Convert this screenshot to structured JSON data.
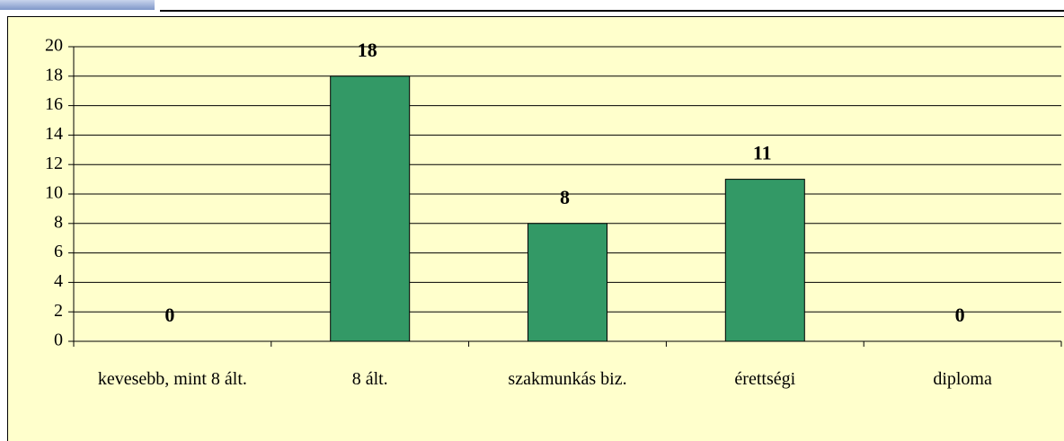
{
  "chart_data": {
    "type": "bar",
    "categories": [
      "kevesebb, mint 8 ált.",
      "8 ált.",
      "szakmunkás biz.",
      "érettségi",
      "diploma"
    ],
    "values": [
      0,
      18,
      8,
      11,
      0
    ],
    "color": "#339966",
    "ylim": [
      0,
      20
    ],
    "yticks": [
      0,
      2,
      4,
      6,
      8,
      10,
      12,
      14,
      16,
      18,
      20
    ],
    "grid": true
  }
}
